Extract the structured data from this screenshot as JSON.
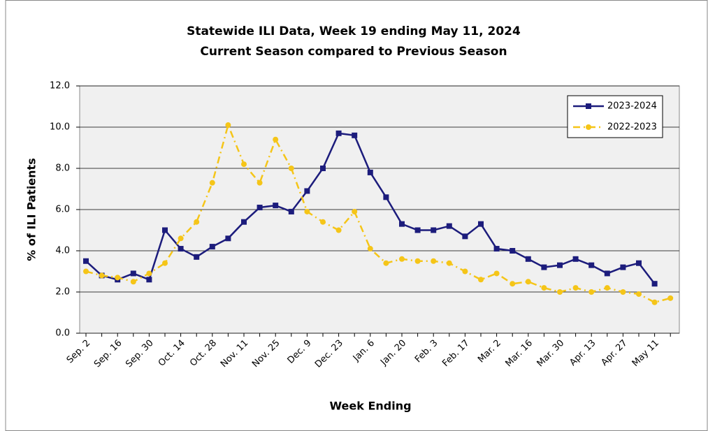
{
  "chart_data": {
    "type": "line",
    "title": "Statewide ILI Data, Week 19 ending May 11, 2024",
    "subtitle": "Current Season compared to Previous Season",
    "x_label": "Week Ending",
    "y_label": "% of ILI Patients",
    "categories": [
      "Sep. 2",
      null,
      "Sep. 16",
      null,
      "Sep. 30",
      null,
      "Oct. 14",
      null,
      "Oct. 28",
      null,
      "Nov. 11",
      null,
      "Nov. 25",
      null,
      "Dec. 9",
      null,
      "Dec. 23",
      null,
      "Jan. 6",
      null,
      "Jan. 20",
      null,
      "Feb. 3",
      null,
      "Feb. 17",
      null,
      "Mar. 2",
      null,
      "Mar. 16",
      null,
      "Mar. 30",
      null,
      "Apr. 13",
      null,
      "Apr. 27",
      null,
      "May 11",
      null
    ],
    "series": [
      {
        "name": "2023-2024",
        "color": "#1c1c7c",
        "marker": "square",
        "dash": "solid",
        "values": [
          3.5,
          2.8,
          2.6,
          2.9,
          2.6,
          5.0,
          4.1,
          3.7,
          4.2,
          4.6,
          5.4,
          6.1,
          6.2,
          5.9,
          6.9,
          8.0,
          9.7,
          9.6,
          7.8,
          6.6,
          5.3,
          5.0,
          5.0,
          5.2,
          4.7,
          5.3,
          4.1,
          4.0,
          3.6,
          3.2,
          3.3,
          3.6,
          3.3,
          2.9,
          3.2,
          3.4,
          2.4,
          null
        ]
      },
      {
        "name": "2022-2023",
        "color": "#f5c518",
        "marker": "circle",
        "dash": "dashdot",
        "values": [
          3.0,
          2.8,
          2.7,
          2.5,
          2.9,
          3.4,
          4.6,
          5.4,
          7.3,
          10.1,
          8.2,
          7.3,
          9.4,
          8.0,
          5.9,
          5.4,
          5.0,
          5.9,
          4.1,
          3.4,
          3.6,
          3.5,
          3.5,
          3.4,
          3.0,
          2.6,
          2.9,
          2.4,
          2.5,
          2.2,
          2.0,
          2.2,
          2.0,
          2.2,
          2.0,
          1.9,
          1.5,
          1.7
        ]
      }
    ],
    "ylim": [
      0,
      12
    ],
    "yticks": [
      {
        "value": 0,
        "label": "0.0"
      },
      {
        "value": 2,
        "label": "2.0"
      },
      {
        "value": 4,
        "label": "4.0"
      },
      {
        "value": 6,
        "label": "6.0"
      },
      {
        "value": 8,
        "label": "8.0"
      },
      {
        "value": 10,
        "label": "10.0"
      },
      {
        "value": 12,
        "label": "12.0"
      }
    ],
    "grid": true,
    "legend": "top-right"
  }
}
